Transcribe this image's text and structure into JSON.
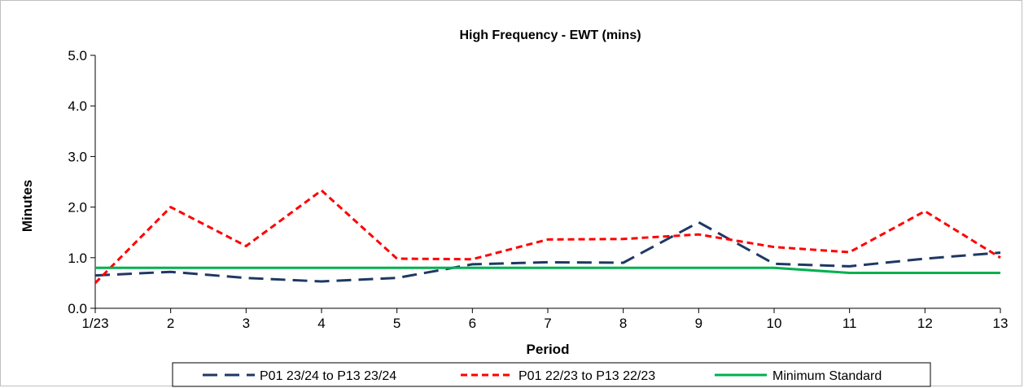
{
  "chart_data": {
    "type": "line",
    "title": "High Frequency - EWT (mins)",
    "xlabel": "Period",
    "ylabel": "Minutes",
    "categories": [
      "1/23",
      "2",
      "3",
      "4",
      "5",
      "6",
      "7",
      "8",
      "9",
      "10",
      "11",
      "12",
      "13"
    ],
    "ylim": [
      0,
      5
    ],
    "yticks": [
      "0.0",
      "1.0",
      "2.0",
      "3.0",
      "4.0",
      "5.0"
    ],
    "grid": false,
    "legend_position": "bottom",
    "series": [
      {
        "name": "P01 23/24 to P13 23/24",
        "color": "#1f3864",
        "style": "long-dash",
        "values": [
          0.65,
          0.72,
          0.6,
          0.53,
          0.6,
          0.87,
          0.91,
          0.9,
          1.7,
          0.88,
          0.83,
          0.98,
          1.1
        ]
      },
      {
        "name": "P01 22/23 to P13 22/23",
        "color": "#ff0000",
        "style": "short-dash",
        "values": [
          0.5,
          2.0,
          1.23,
          2.33,
          0.98,
          0.97,
          1.36,
          1.37,
          1.46,
          1.21,
          1.11,
          1.92,
          1.0
        ]
      },
      {
        "name": "Minimum Standard",
        "color": "#00b050",
        "style": "solid",
        "values": [
          0.8,
          0.8,
          0.8,
          0.8,
          0.8,
          0.8,
          0.8,
          0.8,
          0.8,
          0.8,
          0.7,
          0.7,
          0.7
        ]
      }
    ]
  }
}
